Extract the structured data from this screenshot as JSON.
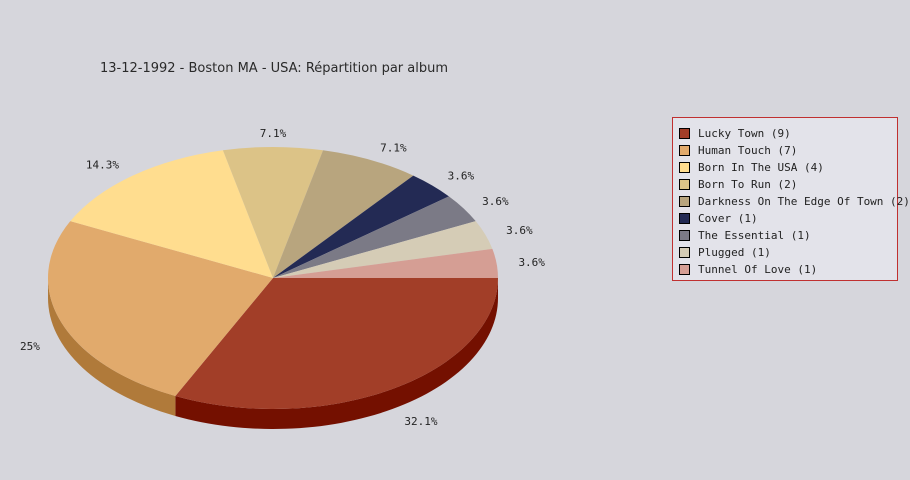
{
  "chart_data": {
    "type": "pie",
    "title": "13-12-1992 - Boston MA - USA:  Répartition par album",
    "legend_position": "right",
    "slices": [
      {
        "name": "Lucky Town",
        "count": 9,
        "percent": 32.1,
        "label": "32.1%",
        "legend": "Lucky Town (9)",
        "color": "#a23e28",
        "side_color": "#741000"
      },
      {
        "name": "Human Touch",
        "count": 7,
        "percent": 25,
        "label": "25%",
        "legend": "Human Touch (7)",
        "color": "#e1aa6c",
        "side_color": "#b07a3a"
      },
      {
        "name": "Born In The USA",
        "count": 4,
        "percent": 14.3,
        "label": "14.3%",
        "legend": "Born In The USA (4)",
        "color": "#ffdd8f",
        "side_color": "#c9a85a"
      },
      {
        "name": "Born To Run",
        "count": 2,
        "percent": 7.1,
        "label": "7.1%",
        "legend": "Born To Run (2)",
        "color": "#dcc387",
        "side_color": "#a8904f"
      },
      {
        "name": "Darkness On The Edge Of Town",
        "count": 2,
        "percent": 7.1,
        "label": "7.1%",
        "legend": "Darkness On The Edge Of Town (2)",
        "color": "#b8a57e",
        "side_color": "#86734c"
      },
      {
        "name": "Cover",
        "count": 1,
        "percent": 3.6,
        "label": "3.6%",
        "legend": "Cover (1)",
        "color": "#232a54",
        "side_color": "#10142e"
      },
      {
        "name": "The Essential",
        "count": 1,
        "percent": 3.6,
        "label": "3.6%",
        "legend": "The Essential (1)",
        "color": "#7b7a86",
        "side_color": "#55545e"
      },
      {
        "name": "Plugged",
        "count": 1,
        "percent": 3.6,
        "label": "3.6%",
        "legend": "Plugged (1)",
        "color": "#d5ccb6",
        "side_color": "#a89f88"
      },
      {
        "name": "Tunnel Of Love",
        "count": 1,
        "percent": 3.6,
        "label": "3.6%",
        "legend": "Tunnel Of Love (1)",
        "color": "#d59e94",
        "side_color": "#a8706a"
      }
    ]
  }
}
